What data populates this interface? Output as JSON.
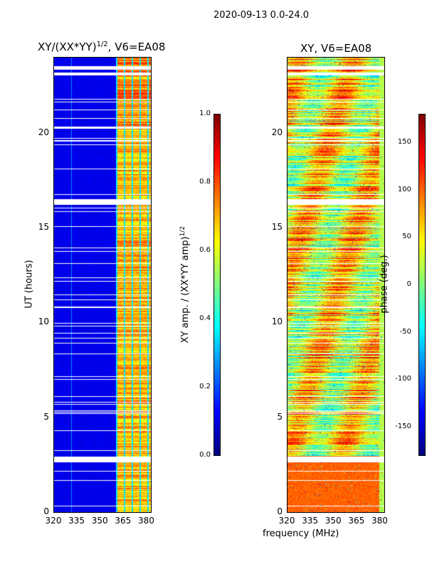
{
  "suptitle": "2020-09-13 0.0-24.0",
  "chart_data": [
    {
      "type": "heatmap",
      "title": "XY/(XX*YY)",
      "title_sup": "1/2",
      "title_suffix": ", V6=EA08",
      "xlabel": "frequency (MHz)",
      "ylabel": "UT (hours)",
      "xlim": [
        320,
        383
      ],
      "ylim": [
        0,
        24
      ],
      "xticks": [
        "320",
        "335",
        "350",
        "365",
        "380"
      ],
      "yticks": [
        "0",
        "5",
        "10",
        "15",
        "20"
      ],
      "colorbar": {
        "label": "XY amp. / (XX*YY amp)",
        "label_sup": "1/2",
        "range": [
          0.0,
          1.0
        ],
        "ticks": [
          "0.0",
          "0.2",
          "0.4",
          "0.6",
          "0.8",
          "1.0"
        ],
        "colormap": "jet"
      }
    },
    {
      "type": "heatmap",
      "title": "XY, V6=EA08",
      "xlabel": "frequency (MHz)",
      "xlim": [
        320,
        383
      ],
      "ylim": [
        0,
        24
      ],
      "xticks": [
        "320",
        "335",
        "350",
        "365",
        "380"
      ],
      "yticks": [
        "0",
        "5",
        "10",
        "15",
        "20"
      ],
      "colorbar": {
        "label": "phase (deg.)",
        "range": [
          -180,
          180
        ],
        "ticks": [
          "-150",
          "-100",
          "-50",
          "0",
          "50",
          "100",
          "150"
        ],
        "colormap": "jet"
      }
    }
  ]
}
